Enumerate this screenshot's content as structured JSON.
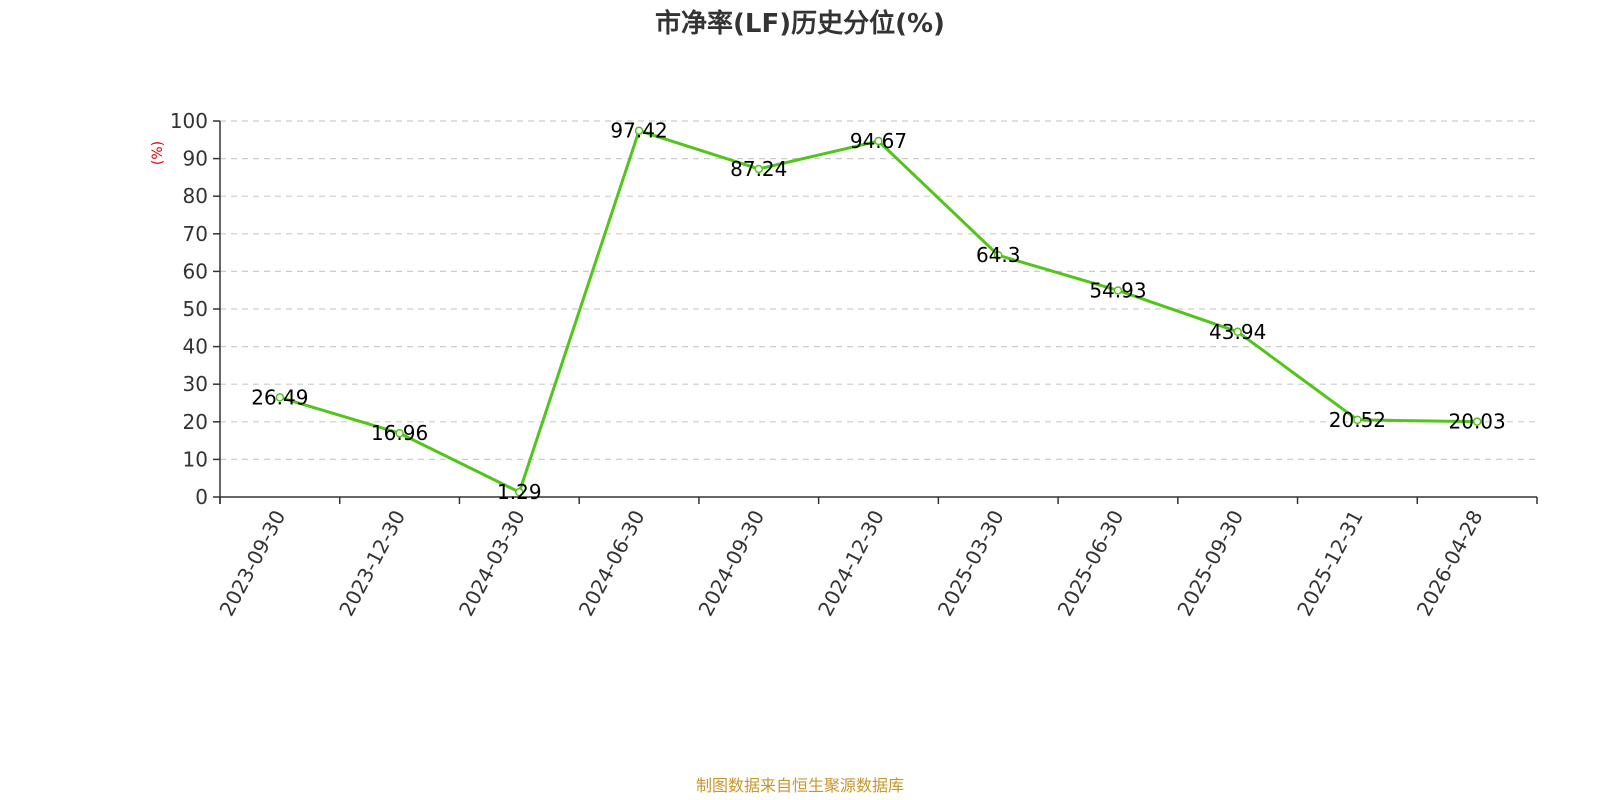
{
  "chart_data": {
    "type": "line",
    "title": "市净率(LF)历史分位(%)",
    "ylabel": "(%)",
    "xlabel": "",
    "ylim": [
      0,
      100
    ],
    "yticks": [
      0,
      10,
      20,
      30,
      40,
      50,
      60,
      70,
      80,
      90,
      100
    ],
    "grid": true,
    "categories": [
      "2023-09-30",
      "2023-12-30",
      "2024-03-30",
      "2024-06-30",
      "2024-09-30",
      "2024-12-30",
      "2025-03-30",
      "2025-06-30",
      "2025-09-30",
      "2025-12-31",
      "2026-04-28"
    ],
    "series": [
      {
        "values": [
          26.49,
          16.96,
          1.29,
          97.42,
          87.24,
          94.67,
          64.3,
          54.93,
          43.94,
          20.52,
          20.03
        ],
        "labels": [
          "26.49",
          "16.96",
          "1.29",
          "97.42",
          "87.24",
          "94.67",
          "64.3",
          "54.93",
          "43.94",
          "20.52",
          "20.03"
        ],
        "color": "#52c41a"
      }
    ],
    "source": "制图数据来自恒生聚源数据库",
    "colors": {
      "title": "#333333",
      "ylabel": "#e00000",
      "source": "#c8962c",
      "grid": "#cccccc"
    }
  }
}
